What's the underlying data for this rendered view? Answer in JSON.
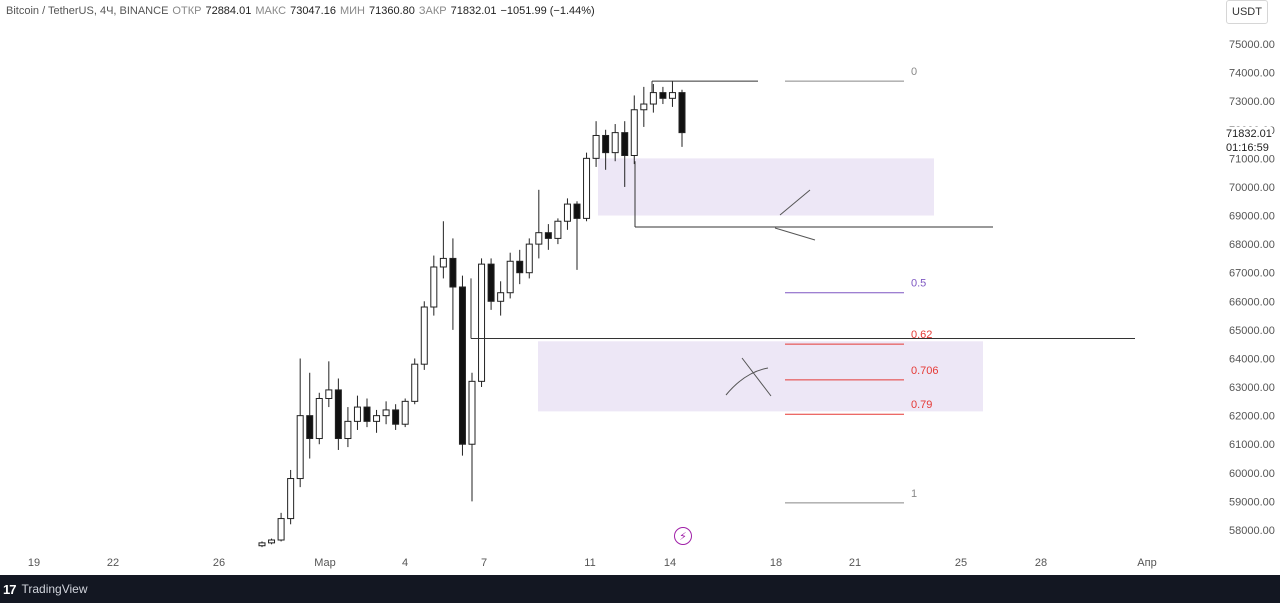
{
  "header": {
    "symbol": "Bitcoin / TetherUS, 4Ч, BINANCE",
    "open_label": "ОТКР",
    "open": "72884.01",
    "high_label": "МАКС",
    "high": "73047.16",
    "low_label": "МИН",
    "low": "71360.80",
    "close_label": "ЗАКР",
    "close": "71832.01",
    "change": "−1051.99 (−1.44%)"
  },
  "currency": "USDT",
  "price_tag": {
    "price": "71832.01",
    "countdown": "01:16:59"
  },
  "footer": {
    "logo": "17",
    "brand": "TradingView"
  },
  "icons": {
    "lightning": "lightning-icon"
  },
  "chart_data": {
    "type": "candlestick",
    "ylim": [
      57500,
      75800
    ],
    "yticks": [
      "58000.00",
      "59000.00",
      "60000.00",
      "61000.00",
      "62000.00",
      "63000.00",
      "64000.00",
      "65000.00",
      "66000.00",
      "67000.00",
      "68000.00",
      "69000.00",
      "70000.00",
      "71000.00",
      "72000.00",
      "73000.00",
      "74000.00",
      "75000.00"
    ],
    "xticks": [
      "19",
      "22",
      "26",
      "Мар",
      "4",
      "7",
      "11",
      "14",
      "18",
      "21",
      "25",
      "28",
      "Апр"
    ],
    "fib_levels": [
      {
        "label": "0",
        "value": 73700,
        "color": "#888888"
      },
      {
        "label": "0.5",
        "value": 66300,
        "color": "#7e57c2"
      },
      {
        "label": "0.62",
        "value": 64500,
        "color": "#e53935"
      },
      {
        "label": "0.706",
        "value": 63250,
        "color": "#e53935"
      },
      {
        "label": "0.79",
        "value": 62050,
        "color": "#e53935"
      },
      {
        "label": "1",
        "value": 58950,
        "color": "#888888"
      }
    ],
    "zones": [
      {
        "y1": 71000,
        "y2": 69000,
        "color": "#ede7f6"
      },
      {
        "y1": 64600,
        "y2": 62150,
        "color": "#ede7f6"
      }
    ],
    "hlines": [
      {
        "value": 73700
      },
      {
        "value": 68600
      },
      {
        "value": 64700
      }
    ],
    "candles": [
      [
        57450,
        57600,
        57400,
        57550
      ],
      [
        57550,
        57700,
        57500,
        57650
      ],
      [
        57650,
        58600,
        57600,
        58400
      ],
      [
        58400,
        60100,
        58200,
        59800
      ],
      [
        59800,
        64000,
        59500,
        62000
      ],
      [
        62000,
        63500,
        60500,
        61200
      ],
      [
        61200,
        62800,
        61000,
        62600
      ],
      [
        62600,
        63900,
        62300,
        62900
      ],
      [
        62900,
        63300,
        60800,
        61200
      ],
      [
        61200,
        62300,
        60900,
        61800
      ],
      [
        61800,
        62700,
        61500,
        62300
      ],
      [
        62300,
        62600,
        61600,
        61800
      ],
      [
        61800,
        62200,
        61400,
        62000
      ],
      [
        62000,
        62500,
        61700,
        62200
      ],
      [
        62200,
        62400,
        61500,
        61700
      ],
      [
        61700,
        62600,
        61600,
        62500
      ],
      [
        62500,
        64000,
        62400,
        63800
      ],
      [
        63800,
        66000,
        63600,
        65800
      ],
      [
        65800,
        67600,
        65500,
        67200
      ],
      [
        67200,
        68800,
        66800,
        67500
      ],
      [
        67500,
        68200,
        65000,
        66500
      ],
      [
        66500,
        66900,
        60600,
        61000
      ],
      [
        61000,
        63500,
        59000,
        63200
      ],
      [
        63200,
        67500,
        63000,
        67300
      ],
      [
        67300,
        67500,
        65700,
        66000
      ],
      [
        66000,
        66700,
        65500,
        66300
      ],
      [
        66300,
        67700,
        66100,
        67400
      ],
      [
        67400,
        67800,
        66600,
        67000
      ],
      [
        67000,
        68200,
        66800,
        68000
      ],
      [
        68000,
        69900,
        67500,
        68400
      ],
      [
        68400,
        68700,
        67800,
        68200
      ],
      [
        68200,
        68900,
        68000,
        68800
      ],
      [
        68800,
        69600,
        68500,
        69400
      ],
      [
        69400,
        69500,
        67100,
        68900
      ],
      [
        68900,
        71200,
        68800,
        71000
      ],
      [
        71000,
        72300,
        70700,
        71800
      ],
      [
        71800,
        72000,
        70600,
        71200
      ],
      [
        71200,
        72200,
        70900,
        71900
      ],
      [
        71900,
        72300,
        70000,
        71100
      ],
      [
        71100,
        73200,
        70800,
        72700
      ],
      [
        72700,
        73500,
        72100,
        72900
      ],
      [
        72900,
        73600,
        72600,
        73300
      ],
      [
        73300,
        73500,
        72900,
        73100
      ],
      [
        73100,
        73700,
        72800,
        73300
      ],
      [
        73300,
        73400,
        71400,
        71900
      ]
    ]
  }
}
